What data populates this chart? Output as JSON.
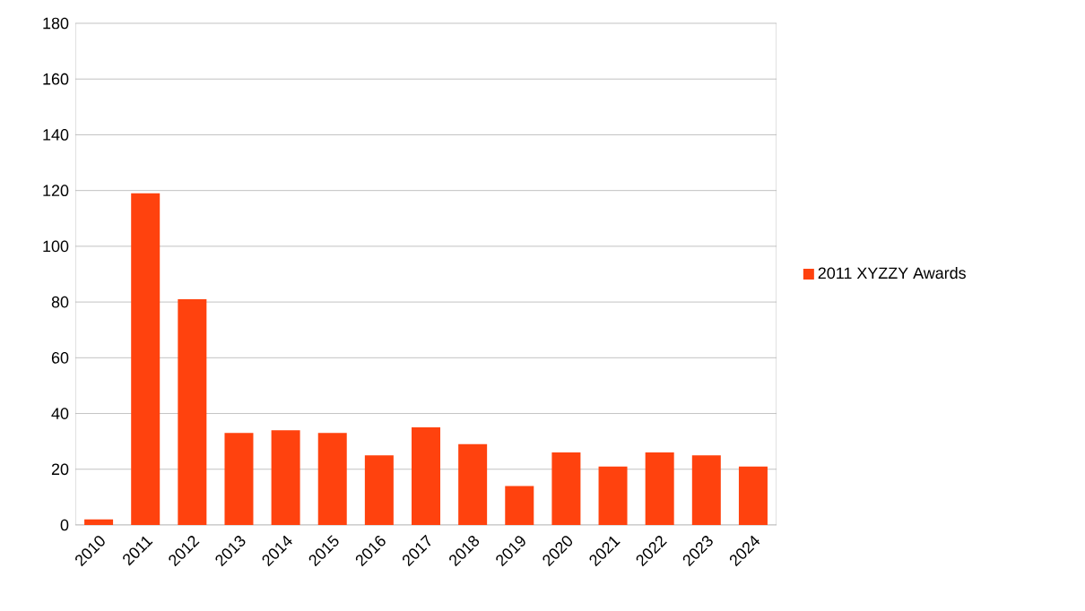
{
  "chart_data": {
    "type": "bar",
    "categories": [
      "2010",
      "2011",
      "2012",
      "2013",
      "2014",
      "2015",
      "2016",
      "2017",
      "2018",
      "2019",
      "2020",
      "2021",
      "2022",
      "2023",
      "2024"
    ],
    "series": [
      {
        "name": "2011 XYZZY Awards",
        "color": "#ff420e",
        "values": [
          2,
          119,
          81,
          33,
          34,
          33,
          25,
          35,
          29,
          14,
          26,
          21,
          26,
          25,
          21
        ]
      }
    ],
    "ylim": [
      0,
      180
    ],
    "yticks": [
      0,
      20,
      40,
      60,
      80,
      100,
      120,
      140,
      160,
      180
    ],
    "grid": "y",
    "legend": "right"
  }
}
